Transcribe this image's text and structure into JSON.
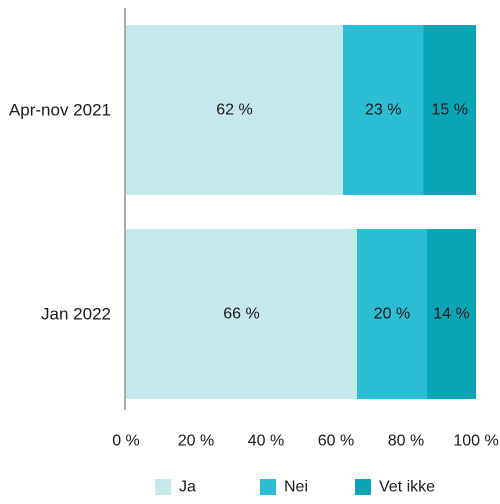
{
  "chart_data": {
    "type": "bar",
    "orientation": "horizontal",
    "stacked": true,
    "title": "",
    "xlabel": "",
    "ylabel": "",
    "categories": [
      "Apr-nov 2021",
      "Jan 2022"
    ],
    "series": [
      {
        "name": "Ja",
        "values": [
          62,
          66
        ],
        "labels": [
          "62 %",
          "66 %"
        ],
        "color": "#c5e8ed"
      },
      {
        "name": "Nei",
        "values": [
          23,
          20
        ],
        "labels": [
          "23 %",
          "20 %"
        ],
        "color": "#2bbdd1"
      },
      {
        "name": "Vet ikke",
        "values": [
          15,
          14
        ],
        "labels": [
          "15 %",
          "14 %"
        ],
        "color": "#0aa5b5"
      }
    ],
    "xlim": [
      0,
      100
    ],
    "xticks": [
      0,
      20,
      40,
      60,
      80,
      100
    ],
    "xtick_labels": [
      "0 %",
      "20 %",
      "40 %",
      "60 %",
      "80 %",
      "100 %"
    ],
    "grid": false,
    "legend_position": "bottom"
  }
}
